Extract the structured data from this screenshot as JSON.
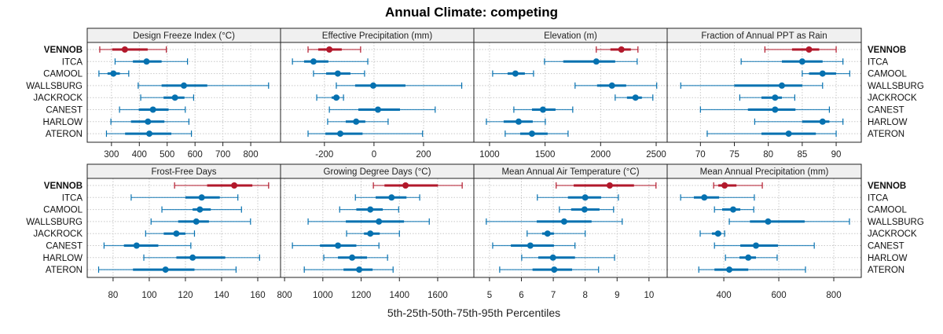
{
  "chart_data": {
    "type": "dotplot-percentile",
    "title": "Annual Climate: competing",
    "xlabel": "5th-25th-50th-75th-95th Percentiles",
    "percentiles": [
      "5th",
      "25th",
      "50th",
      "75th",
      "95th"
    ],
    "sites": [
      "VENNOB",
      "ITCA",
      "CAMOOL",
      "WALLSBURG",
      "JACKROCK",
      "CANEST",
      "HARLOW",
      "ATERON"
    ],
    "highlight_site": "VENNOB",
    "colors": {
      "highlight": "#b2182b",
      "other": "#0571b0",
      "strip_bg": "#f0f0f0",
      "grid": "#c8c8c8"
    },
    "grid": true,
    "layout": "2 rows x 4 columns",
    "panels": [
      {
        "name": "Design Freeze Index (°C)",
        "xlim": [
          213,
          907
        ],
        "ticks": [
          300,
          400,
          500,
          600,
          700,
          800
        ],
        "values": {
          "VENNOB": [
            258,
            303,
            348,
            430,
            497
          ],
          "ITCA": [
            313,
            377,
            426,
            480,
            573
          ],
          "CAMOOL": [
            255,
            286,
            307,
            330,
            362
          ],
          "WALLSBURG": [
            396,
            480,
            560,
            644,
            864
          ],
          "JACKROCK": [
            405,
            487,
            528,
            562,
            595
          ],
          "CANEST": [
            329,
            398,
            449,
            505,
            565
          ],
          "HARLOW": [
            298,
            370,
            431,
            490,
            578
          ],
          "ATERON": [
            282,
            349,
            436,
            515,
            587
          ]
        }
      },
      {
        "name": "Effective Precipitation (mm)",
        "xlim": [
          -377,
          403
        ],
        "ticks": [
          -200,
          0,
          200
        ],
        "values": {
          "VENNOB": [
            -266,
            -225,
            -180,
            -130,
            -54
          ],
          "ITCA": [
            -329,
            -282,
            -244,
            -184,
            -25
          ],
          "CAMOOL": [
            -244,
            -193,
            -146,
            -95,
            -38
          ],
          "WALLSBURG": [
            -152,
            -76,
            -3,
            127,
            354
          ],
          "JACKROCK": [
            -231,
            -171,
            -152,
            -139,
            -123
          ],
          "CANEST": [
            -180,
            -63,
            16,
            105,
            247
          ],
          "HARLOW": [
            -187,
            -114,
            -72,
            -35,
            57
          ],
          "ATERON": [
            -266,
            -196,
            -136,
            -46,
            196
          ]
        }
      },
      {
        "name": "Elevation (m)",
        "xlim": [
          859,
          2599
        ],
        "ticks": [
          1000,
          1500,
          2000,
          2500
        ],
        "values": {
          "VENNOB": [
            1961,
            2088,
            2187,
            2272,
            2336
          ],
          "ITCA": [
            1495,
            1664,
            1961,
            2131,
            2329
          ],
          "CAMOOL": [
            1028,
            1163,
            1233,
            1318,
            1396
          ],
          "WALLSBURG": [
            1770,
            1968,
            2102,
            2230,
            2505
          ],
          "JACKROCK": [
            2131,
            2237,
            2314,
            2371,
            2470
          ],
          "CANEST": [
            1219,
            1382,
            1481,
            1594,
            1749
          ],
          "HARLOW": [
            972,
            1127,
            1262,
            1389,
            1502
          ],
          "ATERON": [
            1141,
            1276,
            1382,
            1523,
            1707
          ]
        }
      },
      {
        "name": "Fraction of Annual PPT as Rain",
        "xlim": [
          65.1,
          93.7
        ],
        "ticks": [
          70,
          75,
          80,
          85,
          90
        ],
        "values": {
          "VENNOB": [
            79.5,
            83.5,
            86.0,
            87.5,
            90.0
          ],
          "ITCA": [
            76.0,
            82.0,
            85.0,
            88.0,
            91.0
          ],
          "CAMOOL": [
            85.0,
            86.0,
            88.0,
            90.0,
            92.0
          ],
          "WALLSBURG": [
            67.1,
            75.0,
            82.0,
            85.0,
            88.0
          ],
          "JACKROCK": [
            75.8,
            79.0,
            81.0,
            82.0,
            83.9
          ],
          "CANEST": [
            70.0,
            77.0,
            81.0,
            84.0,
            89.0
          ],
          "HARLOW": [
            78.0,
            85.0,
            88.0,
            89.0,
            91.0
          ],
          "ATERON": [
            71.0,
            79.0,
            83.0,
            87.0,
            90.0
          ]
        }
      },
      {
        "name": "Frost-Free Days",
        "xlim": [
          65.7,
          172.6
        ],
        "ticks": [
          80,
          100,
          120,
          140,
          160
        ],
        "values": {
          "VENNOB": [
            114,
            132,
            147,
            157,
            166
          ],
          "ITCA": [
            90,
            120,
            129,
            139,
            149
          ],
          "CAMOOL": [
            107,
            124,
            128,
            134,
            151
          ],
          "WALLSBURG": [
            101,
            116,
            126,
            133,
            156
          ],
          "JACKROCK": [
            98,
            108,
            115,
            120,
            125
          ],
          "CANEST": [
            75,
            86,
            93,
            105,
            123
          ],
          "HARLOW": [
            97,
            115,
            124,
            142,
            161
          ],
          "ATERON": [
            72,
            91,
            109,
            125,
            148
          ]
        }
      },
      {
        "name": "Growing Degree Days (°C)",
        "xlim": [
          779,
          1789
        ],
        "ticks": [
          800,
          1000,
          1200,
          1400,
          1600
        ],
        "values": {
          "VENNOB": [
            1264,
            1322,
            1432,
            1601,
            1728
          ],
          "ITCA": [
            1170,
            1276,
            1359,
            1437,
            1506
          ],
          "CAMOOL": [
            1088,
            1175,
            1248,
            1313,
            1396
          ],
          "WALLSBURG": [
            923,
            1120,
            1293,
            1424,
            1556
          ],
          "JACKROCK": [
            1124,
            1215,
            1248,
            1297,
            1400
          ],
          "CANEST": [
            841,
            985,
            1079,
            1175,
            1293
          ],
          "HARLOW": [
            1005,
            1079,
            1153,
            1231,
            1338
          ],
          "ATERON": [
            903,
            1108,
            1190,
            1260,
            1367
          ]
        }
      },
      {
        "name": "Mean Annual Air Temperature (°C)",
        "xlim": [
          4.51,
          10.57
        ],
        "ticks": [
          5,
          6,
          7,
          8,
          9,
          10
        ],
        "values": {
          "VENNOB": [
            7.09,
            7.64,
            8.77,
            9.53,
            10.22
          ],
          "ITCA": [
            6.5,
            7.46,
            8.0,
            8.5,
            9.04
          ],
          "CAMOOL": [
            7.19,
            7.56,
            7.98,
            8.45,
            8.89
          ],
          "WALLSBURG": [
            4.9,
            6.48,
            7.34,
            8.2,
            9.16
          ],
          "JACKROCK": [
            6.18,
            6.65,
            6.82,
            7.02,
            8.0
          ],
          "CANEST": [
            5.1,
            5.67,
            6.28,
            7.02,
            7.68
          ],
          "HARLOW": [
            6.01,
            6.53,
            6.99,
            7.68,
            8.92
          ],
          "ATERON": [
            5.32,
            6.35,
            7.03,
            7.59,
            8.42
          ]
        }
      },
      {
        "name": "Mean Annual Precipitation (mm)",
        "xlim": [
          194,
          900
        ],
        "ticks": [
          400,
          600,
          800
        ],
        "values": {
          "VENNOB": [
            363,
            380,
            403,
            446,
            540
          ],
          "ITCA": [
            243,
            291,
            329,
            383,
            511
          ],
          "CAMOOL": [
            366,
            394,
            434,
            460,
            509
          ],
          "WALLSBURG": [
            420,
            495,
            561,
            694,
            857
          ],
          "JACKROCK": [
            314,
            357,
            379,
            391,
            403
          ],
          "CANEST": [
            366,
            460,
            517,
            597,
            729
          ],
          "HARLOW": [
            406,
            457,
            489,
            517,
            594
          ],
          "ATERON": [
            309,
            366,
            420,
            489,
            697
          ]
        }
      }
    ]
  }
}
